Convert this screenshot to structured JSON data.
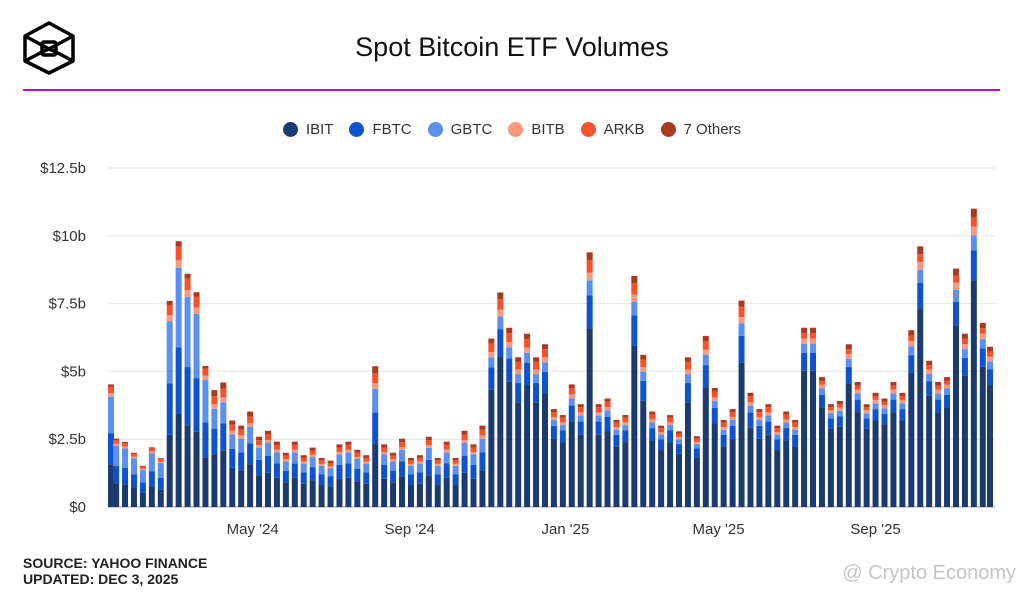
{
  "header": {
    "title": "Spot Bitcoin ETF Volumes",
    "accent_color": "#b10cf7"
  },
  "footer": {
    "source": "SOURCE: YAHOO FINANCE",
    "updated": "UPDATED: DEC 3, 2025"
  },
  "watermark": "@ Crypto Economy",
  "chart_data": {
    "type": "bar",
    "stacked": true,
    "title": "Spot Bitcoin ETF Volumes",
    "ylabel": "",
    "xlabel": "",
    "ylim": [
      0,
      12.5
    ],
    "yticks": [
      "$0",
      "$2.5b",
      "$5b",
      "$7.5b",
      "$10b",
      "$12.5b"
    ],
    "ytick_values": [
      0,
      2.5,
      5,
      7.5,
      10,
      12.5
    ],
    "xticks": [
      "May '24",
      "Sep '24",
      "Jan '25",
      "May '25",
      "Sep '25"
    ],
    "xtick_dates": [
      "2024-05-01",
      "2024-09-01",
      "2025-01-01",
      "2025-05-01",
      "2025-09-01"
    ],
    "xlim": [
      "2024-01-11",
      "2025-12-02"
    ],
    "grid": true,
    "legend_position": "top",
    "units": "USD billions",
    "series": [
      {
        "name": "IBIT",
        "color": "#1b3a70"
      },
      {
        "name": "FBTC",
        "color": "#0f52cf"
      },
      {
        "name": "GBTC",
        "color": "#5b8ff0"
      },
      {
        "name": "BITB",
        "color": "#f99a80"
      },
      {
        "name": "ARKB",
        "color": "#f8522a"
      },
      {
        "name": "7 Others",
        "color": "#a93a22"
      }
    ],
    "x": [
      "2024-01-11",
      "2024-01-15",
      "2024-01-22",
      "2024-01-29",
      "2024-02-05",
      "2024-02-12",
      "2024-02-19",
      "2024-02-26",
      "2024-03-04",
      "2024-03-11",
      "2024-03-18",
      "2024-03-25",
      "2024-04-01",
      "2024-04-08",
      "2024-04-15",
      "2024-04-22",
      "2024-04-29",
      "2024-05-06",
      "2024-05-13",
      "2024-05-20",
      "2024-05-27",
      "2024-06-03",
      "2024-06-10",
      "2024-06-17",
      "2024-06-24",
      "2024-07-01",
      "2024-07-08",
      "2024-07-15",
      "2024-07-22",
      "2024-07-29",
      "2024-08-05",
      "2024-08-12",
      "2024-08-19",
      "2024-08-26",
      "2024-09-02",
      "2024-09-09",
      "2024-09-16",
      "2024-09-23",
      "2024-09-30",
      "2024-10-07",
      "2024-10-14",
      "2024-10-21",
      "2024-10-28",
      "2024-11-04",
      "2024-11-11",
      "2024-11-18",
      "2024-11-25",
      "2024-12-02",
      "2024-12-09",
      "2024-12-16",
      "2024-12-23",
      "2024-12-30",
      "2025-01-06",
      "2025-01-13",
      "2025-01-20",
      "2025-01-27",
      "2025-02-03",
      "2025-02-10",
      "2025-02-17",
      "2025-02-24",
      "2025-03-03",
      "2025-03-10",
      "2025-03-17",
      "2025-03-24",
      "2025-03-31",
      "2025-04-07",
      "2025-04-14",
      "2025-04-21",
      "2025-04-28",
      "2025-05-05",
      "2025-05-12",
      "2025-05-19",
      "2025-05-26",
      "2025-06-02",
      "2025-06-09",
      "2025-06-16",
      "2025-06-23",
      "2025-06-30",
      "2025-07-07",
      "2025-07-14",
      "2025-07-21",
      "2025-07-28",
      "2025-08-04",
      "2025-08-11",
      "2025-08-18",
      "2025-08-25",
      "2025-09-01",
      "2025-09-08",
      "2025-09-15",
      "2025-09-22",
      "2025-09-29",
      "2025-10-06",
      "2025-10-13",
      "2025-10-20",
      "2025-10-27",
      "2025-11-03",
      "2025-11-10",
      "2025-11-17",
      "2025-11-24",
      "2025-12-01"
    ],
    "values": [
      [
        1.58,
        1.13,
        1.35,
        0.14,
        0.23,
        0.09
      ],
      [
        0.88,
        0.63,
        0.75,
        0.08,
        0.13,
        0.05
      ],
      [
        0.84,
        0.6,
        0.72,
        0.07,
        0.12,
        0.05
      ],
      [
        0.7,
        0.5,
        0.6,
        0.06,
        0.1,
        0.04
      ],
      [
        0.53,
        0.38,
        0.45,
        0.05,
        0.08,
        0.03
      ],
      [
        0.77,
        0.55,
        0.66,
        0.07,
        0.11,
        0.04
      ],
      [
        0.63,
        0.45,
        0.54,
        0.05,
        0.09,
        0.04
      ],
      [
        2.66,
        1.9,
        2.28,
        0.23,
        0.38,
        0.15
      ],
      [
        3.43,
        2.45,
        2.94,
        0.29,
        0.49,
        0.2
      ],
      [
        3.01,
        2.15,
        2.58,
        0.26,
        0.43,
        0.17
      ],
      [
        2.77,
        1.98,
        2.37,
        0.24,
        0.4,
        0.16
      ],
      [
        1.82,
        1.3,
        1.56,
        0.16,
        0.26,
        0.1
      ],
      [
        1.94,
        0.95,
        0.73,
        0.17,
        0.3,
        0.22
      ],
      [
        2.07,
        1.01,
        0.78,
        0.18,
        0.32,
        0.23
      ],
      [
        1.44,
        0.7,
        0.54,
        0.13,
        0.22,
        0.16
      ],
      [
        1.35,
        0.66,
        0.51,
        0.12,
        0.21,
        0.15
      ],
      [
        1.58,
        0.77,
        0.6,
        0.14,
        0.25,
        0.18
      ],
      [
        1.17,
        0.57,
        0.44,
        0.1,
        0.18,
        0.13
      ],
      [
        1.26,
        0.62,
        0.48,
        0.11,
        0.2,
        0.14
      ],
      [
        1.08,
        0.53,
        0.41,
        0.1,
        0.17,
        0.12
      ],
      [
        0.9,
        0.44,
        0.34,
        0.08,
        0.14,
        0.1
      ],
      [
        1.08,
        0.53,
        0.41,
        0.1,
        0.17,
        0.12
      ],
      [
        0.86,
        0.42,
        0.32,
        0.08,
        0.13,
        0.1
      ],
      [
        0.99,
        0.48,
        0.37,
        0.09,
        0.15,
        0.11
      ],
      [
        0.81,
        0.4,
        0.31,
        0.07,
        0.13,
        0.09
      ],
      [
        0.77,
        0.37,
        0.29,
        0.07,
        0.12,
        0.09
      ],
      [
        1.04,
        0.51,
        0.39,
        0.09,
        0.16,
        0.12
      ],
      [
        1.08,
        0.53,
        0.41,
        0.1,
        0.17,
        0.12
      ],
      [
        0.95,
        0.46,
        0.36,
        0.08,
        0.15,
        0.11
      ],
      [
        0.86,
        0.42,
        0.32,
        0.08,
        0.13,
        0.1
      ],
      [
        2.34,
        1.14,
        0.88,
        0.21,
        0.36,
        0.26
      ],
      [
        1.04,
        0.51,
        0.39,
        0.09,
        0.16,
        0.12
      ],
      [
        0.9,
        0.44,
        0.34,
        0.08,
        0.14,
        0.1
      ],
      [
        1.13,
        0.55,
        0.43,
        0.1,
        0.18,
        0.13
      ],
      [
        0.81,
        0.4,
        0.31,
        0.07,
        0.13,
        0.09
      ],
      [
        0.86,
        0.42,
        0.32,
        0.08,
        0.13,
        0.1
      ],
      [
        1.17,
        0.57,
        0.44,
        0.1,
        0.18,
        0.13
      ],
      [
        0.81,
        0.4,
        0.31,
        0.07,
        0.13,
        0.09
      ],
      [
        1.08,
        0.53,
        0.41,
        0.1,
        0.17,
        0.12
      ],
      [
        0.81,
        0.4,
        0.31,
        0.07,
        0.13,
        0.09
      ],
      [
        1.26,
        0.62,
        0.48,
        0.11,
        0.2,
        0.14
      ],
      [
        1.04,
        0.51,
        0.39,
        0.09,
        0.16,
        0.12
      ],
      [
        1.35,
        0.66,
        0.51,
        0.12,
        0.21,
        0.15
      ],
      [
        4.34,
        0.81,
        0.37,
        0.19,
        0.31,
        0.19
      ],
      [
        5.53,
        1.03,
        0.47,
        0.24,
        0.4,
        0.24
      ],
      [
        4.62,
        0.86,
        0.4,
        0.2,
        0.33,
        0.2
      ],
      [
        3.85,
        0.72,
        0.33,
        0.17,
        0.28,
        0.17
      ],
      [
        4.48,
        0.83,
        0.38,
        0.19,
        0.32,
        0.19
      ],
      [
        3.85,
        0.72,
        0.33,
        0.17,
        0.28,
        0.17
      ],
      [
        4.2,
        0.78,
        0.36,
        0.18,
        0.3,
        0.18
      ],
      [
        2.52,
        0.47,
        0.22,
        0.11,
        0.18,
        0.11
      ],
      [
        2.38,
        0.44,
        0.2,
        0.1,
        0.17,
        0.1
      ],
      [
        3.15,
        0.59,
        0.27,
        0.14,
        0.23,
        0.14
      ],
      [
        2.66,
        0.49,
        0.23,
        0.11,
        0.19,
        0.11
      ],
      [
        6.58,
        1.22,
        0.56,
        0.28,
        0.47,
        0.28
      ],
      [
        2.66,
        0.49,
        0.23,
        0.11,
        0.19,
        0.11
      ],
      [
        2.8,
        0.52,
        0.24,
        0.12,
        0.2,
        0.12
      ],
      [
        2.24,
        0.42,
        0.19,
        0.1,
        0.16,
        0.1
      ],
      [
        2.38,
        0.44,
        0.2,
        0.1,
        0.17,
        0.1
      ],
      [
        5.95,
        1.11,
        0.51,
        0.26,
        0.43,
        0.26
      ],
      [
        3.92,
        0.73,
        0.34,
        0.17,
        0.28,
        0.17
      ],
      [
        2.45,
        0.46,
        0.21,
        0.11,
        0.18,
        0.11
      ],
      [
        2.1,
        0.39,
        0.18,
        0.09,
        0.15,
        0.09
      ],
      [
        2.38,
        0.44,
        0.2,
        0.1,
        0.17,
        0.1
      ],
      [
        1.96,
        0.36,
        0.17,
        0.08,
        0.14,
        0.08
      ],
      [
        3.85,
        0.72,
        0.33,
        0.17,
        0.28,
        0.17
      ],
      [
        1.82,
        0.34,
        0.16,
        0.08,
        0.13,
        0.08
      ],
      [
        4.41,
        0.82,
        0.38,
        0.19,
        0.32,
        0.19
      ],
      [
        3.08,
        0.57,
        0.26,
        0.13,
        0.22,
        0.13
      ],
      [
        2.24,
        0.42,
        0.19,
        0.1,
        0.16,
        0.1
      ],
      [
        2.52,
        0.47,
        0.22,
        0.11,
        0.18,
        0.11
      ],
      [
        5.32,
        0.99,
        0.46,
        0.23,
        0.38,
        0.23
      ],
      [
        2.94,
        0.55,
        0.25,
        0.13,
        0.21,
        0.13
      ],
      [
        2.52,
        0.47,
        0.22,
        0.11,
        0.18,
        0.11
      ],
      [
        2.66,
        0.49,
        0.23,
        0.11,
        0.19,
        0.11
      ],
      [
        2.1,
        0.39,
        0.18,
        0.09,
        0.15,
        0.09
      ],
      [
        2.45,
        0.46,
        0.21,
        0.11,
        0.18,
        0.11
      ],
      [
        2.24,
        0.42,
        0.19,
        0.1,
        0.16,
        0.1
      ],
      [
        5.02,
        0.66,
        0.33,
        0.2,
        0.2,
        0.2
      ],
      [
        5.02,
        0.66,
        0.33,
        0.2,
        0.2,
        0.2
      ],
      [
        3.65,
        0.48,
        0.24,
        0.14,
        0.14,
        0.14
      ],
      [
        2.89,
        0.38,
        0.19,
        0.11,
        0.11,
        0.11
      ],
      [
        2.96,
        0.39,
        0.2,
        0.12,
        0.12,
        0.12
      ],
      [
        4.56,
        0.6,
        0.3,
        0.18,
        0.18,
        0.18
      ],
      [
        3.5,
        0.46,
        0.23,
        0.14,
        0.14,
        0.14
      ],
      [
        2.89,
        0.38,
        0.19,
        0.11,
        0.11,
        0.11
      ],
      [
        3.19,
        0.42,
        0.21,
        0.13,
        0.13,
        0.13
      ],
      [
        3.04,
        0.4,
        0.2,
        0.12,
        0.12,
        0.12
      ],
      [
        3.5,
        0.46,
        0.23,
        0.14,
        0.14,
        0.14
      ],
      [
        3.19,
        0.42,
        0.21,
        0.13,
        0.13,
        0.13
      ],
      [
        4.94,
        0.65,
        0.33,
        0.2,
        0.2,
        0.2
      ],
      [
        7.3,
        0.96,
        0.48,
        0.29,
        0.29,
        0.29
      ],
      [
        4.1,
        0.54,
        0.27,
        0.16,
        0.16,
        0.16
      ],
      [
        3.5,
        0.46,
        0.23,
        0.14,
        0.14,
        0.14
      ],
      [
        3.65,
        0.48,
        0.24,
        0.14,
        0.14,
        0.14
      ],
      [
        6.69,
        0.88,
        0.44,
        0.26,
        0.26,
        0.26
      ],
      [
        4.86,
        0.64,
        0.32,
        0.19,
        0.19,
        0.19
      ],
      [
        8.36,
        1.1,
        0.55,
        0.33,
        0.33,
        0.33
      ],
      [
        5.17,
        0.68,
        0.34,
        0.2,
        0.2,
        0.2
      ],
      [
        4.48,
        0.59,
        0.3,
        0.18,
        0.18,
        0.18
      ]
    ]
  }
}
